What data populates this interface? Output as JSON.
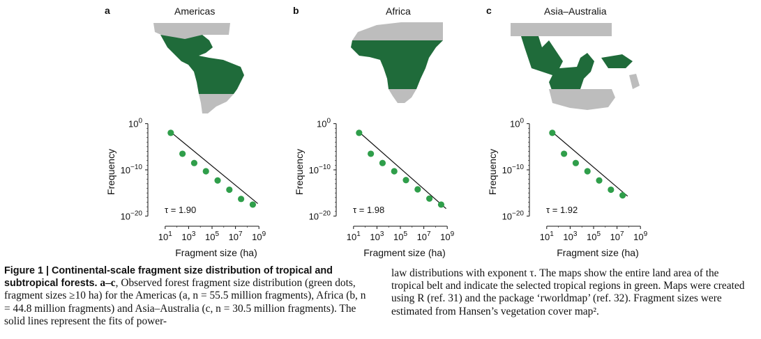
{
  "panels": [
    {
      "letter": "a",
      "title": "Americas",
      "tau_label": "τ = 1.90"
    },
    {
      "letter": "b",
      "title": "Africa",
      "tau_label": "τ = 1.98"
    },
    {
      "letter": "c",
      "title": "Asia–Australia",
      "tau_label": "τ = 1.92"
    }
  ],
  "axes": {
    "ylabel": "Frequency",
    "xlabel": "Fragment size (ha)",
    "y_tick_labels": [
      {
        "base": "10",
        "exp": "0"
      },
      {
        "base": "10",
        "exp": "−10"
      },
      {
        "base": "10",
        "exp": "−20"
      }
    ],
    "x_tick_labels": [
      {
        "base": "10",
        "exp": "1"
      },
      {
        "base": "10",
        "exp": "3"
      },
      {
        "base": "10",
        "exp": "5"
      },
      {
        "base": "10",
        "exp": "7"
      },
      {
        "base": "10",
        "exp": "9"
      }
    ]
  },
  "colors": {
    "forest": "#1f6b3a",
    "land": "#bdbdbd",
    "dot": "#2f9e4a",
    "line": "#111111"
  },
  "chart_data": [
    {
      "type": "scatter",
      "title": "Americas",
      "xlabel": "Fragment size (ha)",
      "ylabel": "Frequency",
      "x_scale": "log",
      "y_scale": "log",
      "xlim": [
        1,
        10000000000
      ],
      "ylim": [
        1e-21,
        10
      ],
      "series": [
        {
          "x": [
            30,
            300,
            3000,
            30000,
            300000,
            3000000,
            30000000,
            300000000
          ],
          "y": [
            0.01,
            3e-07,
            3e-09,
            5e-11,
            5e-13,
            5e-15,
            5e-17,
            3e-18
          ]
        }
      ],
      "fit": {
        "exponent": 1.9,
        "x": [
          30,
          800000000
        ],
        "y": [
          0.015,
          5e-18
        ]
      },
      "annotation": "τ = 1.90"
    },
    {
      "type": "scatter",
      "title": "Africa",
      "xlabel": "Fragment size (ha)",
      "ylabel": "Frequency",
      "x_scale": "log",
      "y_scale": "log",
      "xlim": [
        1,
        10000000000
      ],
      "ylim": [
        1e-21,
        10
      ],
      "series": [
        {
          "x": [
            30,
            300,
            3000,
            30000,
            300000,
            3000000,
            30000000,
            300000000
          ],
          "y": [
            0.01,
            3e-07,
            3e-09,
            5e-11,
            6e-13,
            6e-15,
            6e-17,
            3e-18
          ]
        }
      ],
      "fit": {
        "exponent": 1.98,
        "x": [
          30,
          800000000
        ],
        "y": [
          0.015,
          4e-19
        ]
      },
      "annotation": "τ = 1.98"
    },
    {
      "type": "scatter",
      "title": "Asia–Australia",
      "xlabel": "Fragment size (ha)",
      "ylabel": "Frequency",
      "x_scale": "log",
      "y_scale": "log",
      "xlim": [
        1,
        10000000000
      ],
      "ylim": [
        1e-21,
        10
      ],
      "series": [
        {
          "x": [
            30,
            300,
            3000,
            30000,
            300000,
            3000000,
            30000000
          ],
          "y": [
            0.01,
            3e-07,
            3e-09,
            5e-11,
            5e-13,
            5e-15,
            3e-16
          ]
        }
      ],
      "fit": {
        "exponent": 1.92,
        "x": [
          30,
          80000000
        ],
        "y": [
          0.015,
          2e-16
        ]
      },
      "annotation": "τ = 1.92"
    }
  ],
  "caption": {
    "lead": "Figure 1 | Continental-scale fragment size distribution of tropical and subtropical forests.",
    "part_label": "a–c",
    "left_rest": ", Observed forest fragment size distribution (green dots, fragment sizes ≥10 ha) for the Americas (a, n = 55.5 million fragments), Africa (b, n = 44.8 million fragments) and Asia–Australia (c, n = 30.5 million fragments). The solid lines represent the fits of power-",
    "right": "law distributions with exponent τ. The maps show the entire land area of the tropical belt and indicate the selected tropical regions in green. Maps were created using R (ref. 31) and the package ‘rworldmap’ (ref. 32). Fragment sizes were estimated from Hansen’s vegetation cover map²."
  }
}
